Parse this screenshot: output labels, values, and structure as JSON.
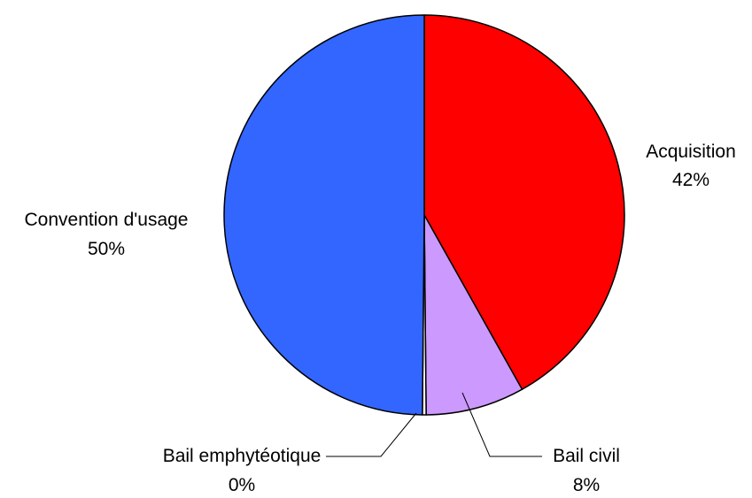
{
  "chart_data": {
    "type": "pie",
    "title": "",
    "start_angle_deg": 0,
    "direction": "clockwise",
    "slices": [
      {
        "label": "Acquisition",
        "value": 42,
        "display": "42%",
        "color": "#ff0000"
      },
      {
        "label": "Bail civil",
        "value": 8,
        "display": "8%",
        "color": "#cc99ff"
      },
      {
        "label": "Bail emphytéotique",
        "value": 0.3,
        "display": "0%",
        "color": "#ffffff"
      },
      {
        "label": "Convention d'usage",
        "value": 50,
        "display": "50%",
        "color": "#3366ff"
      }
    ],
    "outline_color": "#000000"
  }
}
